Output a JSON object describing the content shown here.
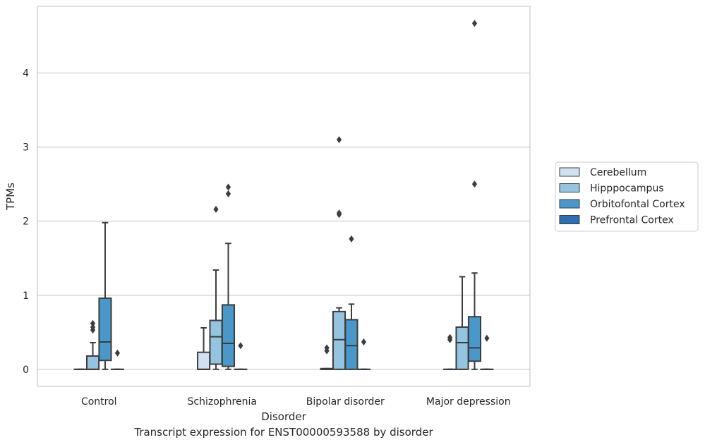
{
  "caption": "Transcript expression for ENST00000593588 by disorder",
  "chart_data": {
    "type": "box",
    "xlabel": "Disorder",
    "ylabel": "TPMs",
    "categories": [
      "Control",
      "Schizophrenia",
      "Bipolar disorder",
      "Major depression"
    ],
    "ylim": [
      -0.23,
      4.9
    ],
    "yticks": [
      0,
      1,
      2,
      3,
      4
    ],
    "grid": true,
    "legend_position": "right",
    "series": [
      {
        "name": "Cerebellum",
        "color": "#d0e1f2",
        "boxes": [
          {
            "q1": 0,
            "median": 0,
            "q3": 0,
            "whisker_low": 0,
            "whisker_high": 0,
            "outliers": []
          },
          {
            "q1": 0,
            "median": 0,
            "q3": 0.23,
            "whisker_low": 0,
            "whisker_high": 0.56,
            "outliers": []
          },
          {
            "q1": 0,
            "median": 0,
            "q3": 0.01,
            "whisker_low": 0,
            "whisker_high": 0.01,
            "outliers": [
              0.25,
              0.29
            ]
          },
          {
            "q1": 0,
            "median": 0,
            "q3": 0,
            "whisker_low": 0,
            "whisker_high": 0,
            "outliers": [
              0.4,
              0.43
            ]
          }
        ]
      },
      {
        "name": "Hipppocampus",
        "color": "#94c4df",
        "boxes": [
          {
            "q1": 0,
            "median": 0,
            "q3": 0.18,
            "whisker_low": 0,
            "whisker_high": 0.36,
            "outliers": [
              0.53,
              0.57,
              0.62
            ]
          },
          {
            "q1": 0.07,
            "median": 0.44,
            "q3": 0.66,
            "whisker_low": 0,
            "whisker_high": 1.34,
            "outliers": [
              2.16
            ]
          },
          {
            "q1": 0,
            "median": 0.4,
            "q3": 0.78,
            "whisker_low": 0,
            "whisker_high": 0.83,
            "outliers": [
              2.09,
              2.11,
              3.1
            ]
          },
          {
            "q1": 0,
            "median": 0.36,
            "q3": 0.57,
            "whisker_low": 0,
            "whisker_high": 1.25,
            "outliers": []
          }
        ]
      },
      {
        "name": "Orbitofontal Cortex",
        "color": "#4a98c9",
        "boxes": [
          {
            "q1": 0.12,
            "median": 0.37,
            "q3": 0.96,
            "whisker_low": 0,
            "whisker_high": 1.98,
            "outliers": []
          },
          {
            "q1": 0.04,
            "median": 0.35,
            "q3": 0.87,
            "whisker_low": 0,
            "whisker_high": 1.7,
            "outliers": [
              2.37,
              2.46
            ]
          },
          {
            "q1": 0,
            "median": 0.32,
            "q3": 0.67,
            "whisker_low": 0,
            "whisker_high": 0.88,
            "outliers": [
              1.76
            ]
          },
          {
            "q1": 0.11,
            "median": 0.29,
            "q3": 0.71,
            "whisker_low": 0,
            "whisker_high": 1.3,
            "outliers": [
              2.5,
              4.67
            ]
          }
        ]
      },
      {
        "name": "Prefrontal Cortex",
        "color": "#2d6faf",
        "boxes": [
          {
            "q1": 0,
            "median": 0,
            "q3": 0,
            "whisker_low": 0,
            "whisker_high": 0,
            "outliers": [
              0.22
            ]
          },
          {
            "q1": 0,
            "median": 0,
            "q3": 0,
            "whisker_low": 0,
            "whisker_high": 0,
            "outliers": [
              0.32
            ]
          },
          {
            "q1": 0,
            "median": 0,
            "q3": 0,
            "whisker_low": 0,
            "whisker_high": 0,
            "outliers": [
              0.37
            ]
          },
          {
            "q1": 0,
            "median": 0,
            "q3": 0,
            "whisker_low": 0,
            "whisker_high": 0,
            "outliers": [
              0.42
            ]
          }
        ]
      }
    ]
  }
}
